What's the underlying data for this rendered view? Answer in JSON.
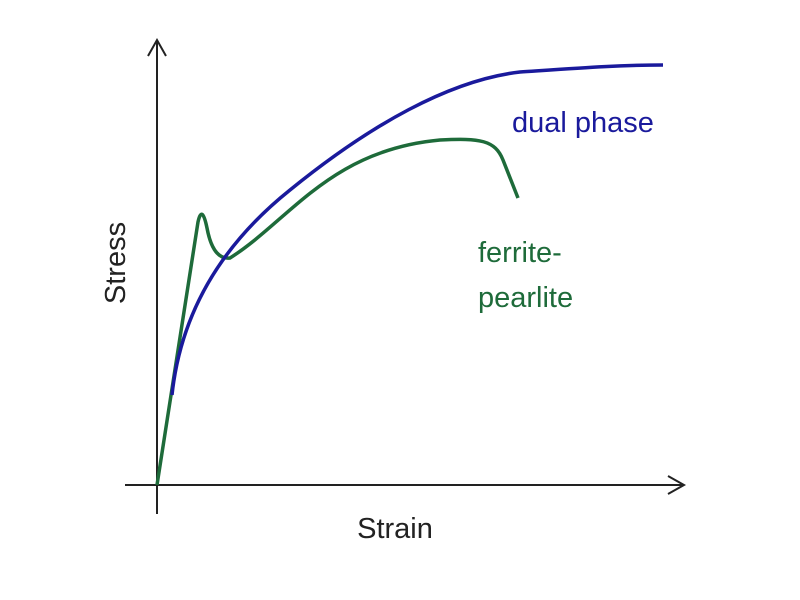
{
  "axes": {
    "y_label": "Stress",
    "x_label": "Strain"
  },
  "curves": [
    {
      "label_lines": [
        "dual phase"
      ]
    },
    {
      "label_lines": [
        "ferrite-",
        "pearlite"
      ]
    }
  ]
}
